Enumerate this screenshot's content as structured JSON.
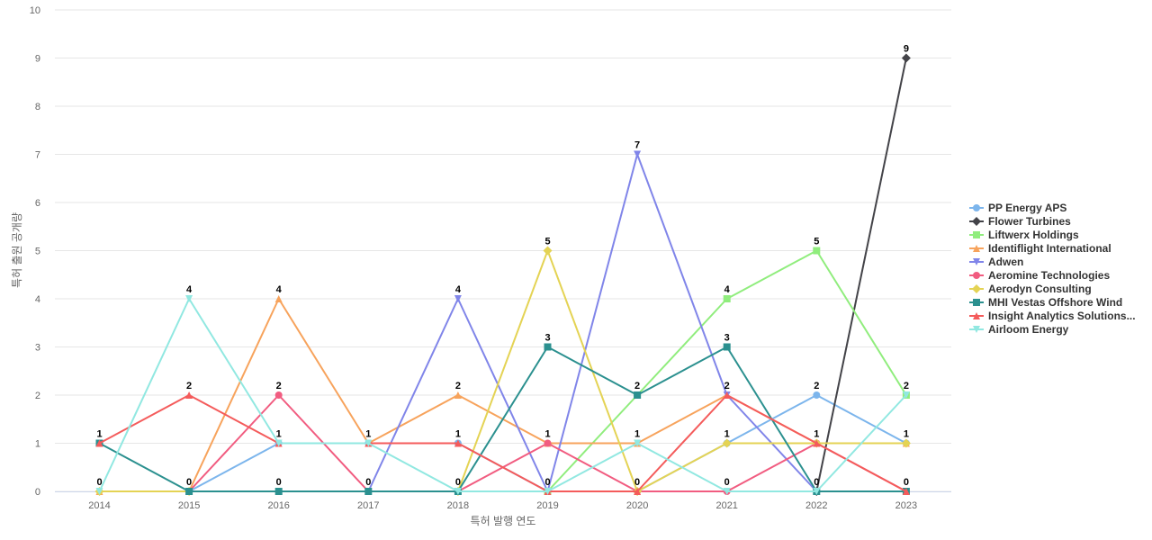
{
  "chart_data": {
    "type": "line",
    "title": "",
    "xlabel": "특허 발행 연도",
    "ylabel": "특허 출원 공개량",
    "ylim": [
      0,
      10
    ],
    "yticks": [
      0,
      1,
      2,
      3,
      4,
      5,
      6,
      7,
      8,
      9,
      10
    ],
    "grid": true,
    "legend_position": "right",
    "data_labels": true,
    "categories": [
      "2014",
      "2015",
      "2016",
      "2017",
      "2018",
      "2019",
      "2020",
      "2021",
      "2022",
      "2023"
    ],
    "series": [
      {
        "name": "PP Energy APS",
        "color": "#7cb5ec",
        "marker": "circle",
        "values": [
          null,
          0,
          1,
          1,
          1,
          0,
          0,
          1,
          2,
          1
        ]
      },
      {
        "name": "Flower Turbines",
        "color": "#434348",
        "marker": "diamond",
        "values": [
          null,
          null,
          null,
          null,
          null,
          null,
          null,
          null,
          0,
          9
        ]
      },
      {
        "name": "Liftwerx Holdings",
        "color": "#90ed7d",
        "marker": "square",
        "values": [
          null,
          null,
          null,
          null,
          null,
          0,
          2,
          4,
          5,
          2
        ]
      },
      {
        "name": "Identiflight International",
        "color": "#f7a35c",
        "marker": "triangle",
        "values": [
          0,
          0,
          4,
          1,
          2,
          1,
          1,
          2,
          1,
          1
        ]
      },
      {
        "name": "Adwen",
        "color": "#8085e9",
        "marker": "triangle-down",
        "values": [
          null,
          null,
          null,
          0,
          4,
          0,
          7,
          2,
          0,
          null
        ]
      },
      {
        "name": "Aeromine Technologies",
        "color": "#f15c80",
        "marker": "circle",
        "values": [
          null,
          0,
          2,
          0,
          0,
          1,
          0,
          0,
          1,
          0
        ]
      },
      {
        "name": "Aerodyn Consulting",
        "color": "#e4d354",
        "marker": "diamond",
        "values": [
          0,
          0,
          null,
          null,
          0,
          5,
          0,
          1,
          1,
          1
        ]
      },
      {
        "name": "MHI Vestas Offshore Wind",
        "color": "#2b908f",
        "marker": "square",
        "values": [
          1,
          0,
          0,
          0,
          0,
          3,
          2,
          3,
          0,
          0
        ]
      },
      {
        "name": "Insight Analytics Solutions...",
        "color": "#f45b5b",
        "marker": "triangle",
        "values": [
          1,
          2,
          1,
          1,
          1,
          0,
          0,
          2,
          1,
          0
        ]
      },
      {
        "name": "Airloom Energy",
        "color": "#91e8e1",
        "marker": "triangle-down",
        "values": [
          0,
          4,
          1,
          1,
          0,
          0,
          1,
          0,
          0,
          2
        ]
      }
    ]
  }
}
